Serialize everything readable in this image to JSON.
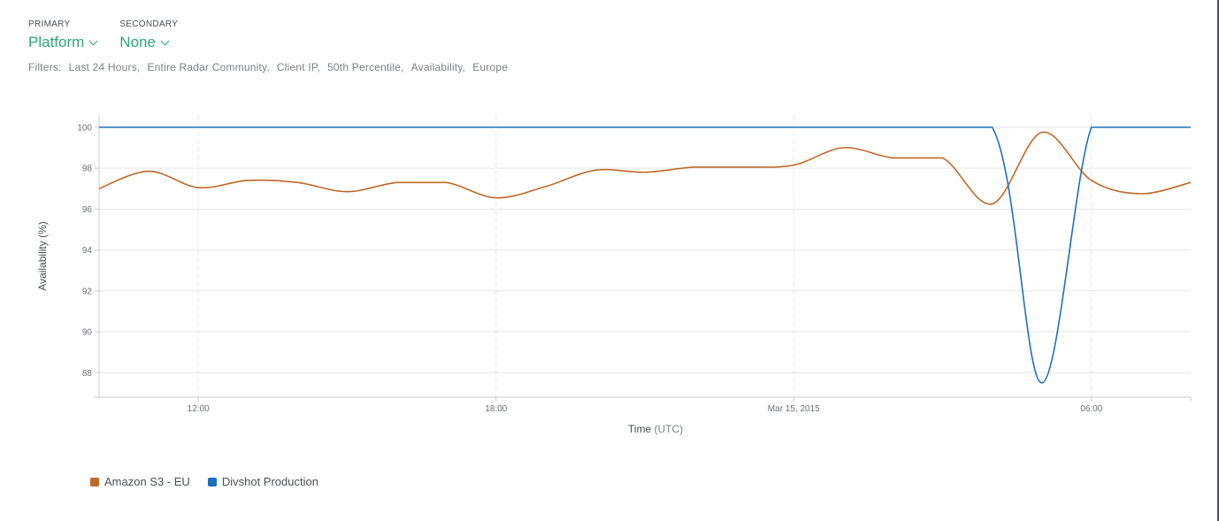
{
  "selectors": {
    "primary": {
      "caption": "PRIMARY",
      "value": "Platform"
    },
    "secondary": {
      "caption": "SECONDARY",
      "value": "None"
    }
  },
  "filters": {
    "label": "Filters:",
    "items": [
      "Last 24 Hours",
      "Entire Radar Community",
      "Client IP",
      "50th Percentile",
      "Availability",
      "Europe"
    ]
  },
  "colors": {
    "accent": "#2aa876",
    "grid": "#e3e6e9",
    "axis_text": "#6a7078"
  },
  "chart_data": {
    "type": "line",
    "xlabel": "Time",
    "xlabel_unit": "(UTC)",
    "ylabel": "Availability (%)",
    "ylim": [
      86.8,
      100.6
    ],
    "yticks": [
      88,
      90,
      92,
      94,
      96,
      98,
      100
    ],
    "x_domain": [
      "2015-03-14 10:00",
      "2015-03-15 08:00"
    ],
    "xticks": [
      {
        "time": "2015-03-14 12:00",
        "label": "12:00"
      },
      {
        "time": "2015-03-14 18:00",
        "label": "18:00"
      },
      {
        "time": "2015-03-15 00:00",
        "label": "Mar 15, 2015"
      },
      {
        "time": "2015-03-15 06:00",
        "label": "06:00"
      }
    ],
    "grid": true,
    "legend_position": "bottom-left",
    "series": [
      {
        "name": "Amazon S3 - EU",
        "color": "#c0682a",
        "points": [
          [
            "2015-03-14 10:00",
            97.0
          ],
          [
            "2015-03-14 11:00",
            97.85
          ],
          [
            "2015-03-14 12:00",
            97.05
          ],
          [
            "2015-03-14 13:00",
            97.4
          ],
          [
            "2015-03-14 14:00",
            97.3
          ],
          [
            "2015-03-14 15:00",
            96.85
          ],
          [
            "2015-03-14 16:00",
            97.3
          ],
          [
            "2015-03-14 17:00",
            97.3
          ],
          [
            "2015-03-14 18:00",
            96.55
          ],
          [
            "2015-03-14 19:00",
            97.1
          ],
          [
            "2015-03-14 20:00",
            97.9
          ],
          [
            "2015-03-14 21:00",
            97.8
          ],
          [
            "2015-03-14 22:00",
            98.05
          ],
          [
            "2015-03-14 23:00",
            98.05
          ],
          [
            "2015-03-15 00:00",
            98.15
          ],
          [
            "2015-03-15 01:00",
            99.0
          ],
          [
            "2015-03-15 02:00",
            98.5
          ],
          [
            "2015-03-15 03:00",
            98.5
          ],
          [
            "2015-03-15 04:00",
            96.25
          ],
          [
            "2015-03-15 05:00",
            99.75
          ],
          [
            "2015-03-15 06:00",
            97.4
          ],
          [
            "2015-03-15 07:00",
            96.75
          ],
          [
            "2015-03-15 08:00",
            97.3
          ]
        ]
      },
      {
        "name": "Divshot Production",
        "color": "#1f6fbf",
        "points": [
          [
            "2015-03-14 10:00",
            100
          ],
          [
            "2015-03-14 12:00",
            100
          ],
          [
            "2015-03-14 14:00",
            100
          ],
          [
            "2015-03-14 16:00",
            100
          ],
          [
            "2015-03-14 18:00",
            100
          ],
          [
            "2015-03-14 20:00",
            100
          ],
          [
            "2015-03-14 22:00",
            100
          ],
          [
            "2015-03-15 00:00",
            100
          ],
          [
            "2015-03-15 02:00",
            100
          ],
          [
            "2015-03-15 04:00",
            100
          ],
          [
            "2015-03-15 05:00",
            87.5
          ],
          [
            "2015-03-15 06:00",
            100
          ],
          [
            "2015-03-15 07:00",
            100
          ],
          [
            "2015-03-15 08:00",
            100
          ]
        ]
      }
    ]
  }
}
